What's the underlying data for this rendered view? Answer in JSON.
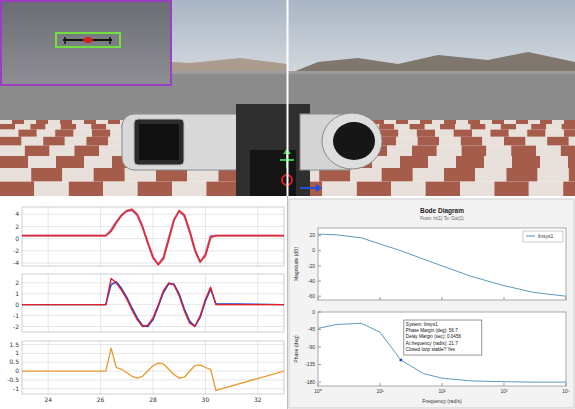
{
  "chart_data": [
    {
      "type": "line",
      "x": [
        23,
        26.2,
        26.4,
        26.6,
        26.8,
        27.0,
        27.2,
        27.4,
        27.6,
        27.8,
        28.0,
        28.2,
        28.4,
        28.6,
        28.8,
        29.0,
        29.2,
        29.4,
        29.6,
        29.8,
        30.0,
        30.2,
        30.4,
        33
      ],
      "xlim": [
        23,
        33
      ],
      "xticks": [
        24,
        26,
        28,
        30,
        32
      ],
      "ylim": [
        -4.5,
        5.2
      ],
      "yticks": [
        -4,
        -2,
        0,
        2,
        4
      ],
      "grid": true,
      "tick_labels": "y",
      "series": [
        {
          "color": "#b07fd8",
          "values": [
            0.5,
            0.5,
            1.5,
            2.8,
            3.9,
            4.5,
            4.6,
            3.8,
            1.8,
            -0.8,
            -3.2,
            -4.2,
            -3.0,
            0.2,
            3.2,
            4.5,
            3.6,
            1.0,
            -2.0,
            -3.9,
            -2.5,
            0.5,
            0.5,
            0.5
          ]
        },
        {
          "color": "#e03030",
          "values": [
            0.5,
            0.5,
            1.2,
            2.6,
            3.8,
            4.6,
            4.8,
            4.0,
            2.0,
            -0.6,
            -3.0,
            -4.3,
            -3.3,
            -0.2,
            3.0,
            4.6,
            3.9,
            1.3,
            -1.8,
            -3.8,
            -2.8,
            0.2,
            0.5,
            0.5
          ]
        }
      ]
    },
    {
      "type": "line",
      "x": [
        23,
        26.2,
        26.4,
        26.6,
        26.8,
        27.0,
        27.2,
        27.4,
        27.6,
        27.8,
        28.0,
        28.2,
        28.4,
        28.6,
        28.8,
        29.0,
        29.2,
        29.4,
        29.6,
        29.8,
        30.0,
        30.2,
        30.4,
        33
      ],
      "xlim": [
        23,
        33
      ],
      "xticks": [
        24,
        26,
        28,
        30,
        32
      ],
      "ylim": [
        -2.5,
        2.8
      ],
      "yticks": [
        -2,
        -1,
        0,
        1,
        2
      ],
      "grid": true,
      "tick_labels": "y",
      "series": [
        {
          "color": "#c8a0e0",
          "values": [
            0,
            0,
            2.0,
            1.9,
            1.4,
            0.6,
            -0.4,
            -1.3,
            -1.9,
            -1.9,
            -1.3,
            -0.1,
            1.2,
            1.9,
            1.8,
            0.9,
            -0.5,
            -1.6,
            -1.9,
            -1.1,
            0.4,
            1.5,
            0,
            0
          ]
        },
        {
          "color": "#2040d0",
          "values": [
            0,
            0,
            1.8,
            2.1,
            1.5,
            0.7,
            -0.3,
            -1.2,
            -1.9,
            -2.0,
            -1.4,
            -0.2,
            1.1,
            1.9,
            1.9,
            1.0,
            -0.4,
            -1.5,
            -2.0,
            -1.2,
            0.3,
            1.4,
            0.1,
            0
          ]
        },
        {
          "color": "#e02020",
          "values": [
            0,
            0,
            2.4,
            2.0,
            1.3,
            0.5,
            -0.5,
            -1.4,
            -2.0,
            -1.9,
            -1.2,
            0.0,
            1.3,
            2.0,
            1.8,
            0.8,
            -0.6,
            -1.7,
            -2.0,
            -1.0,
            0.5,
            1.6,
            0,
            0
          ]
        }
      ]
    },
    {
      "type": "line",
      "x": [
        23,
        26.2,
        26.4,
        26.6,
        26.8,
        27.0,
        27.2,
        27.4,
        27.6,
        27.8,
        28.0,
        28.2,
        28.4,
        28.6,
        28.8,
        29.0,
        29.2,
        29.4,
        29.6,
        29.8,
        30.0,
        30.2,
        30.4,
        33
      ],
      "xlim": [
        23,
        33
      ],
      "xticks": [
        24,
        26,
        28,
        30,
        32
      ],
      "ylim": [
        -1.3,
        1.7
      ],
      "yticks": [
        -1,
        -0.5,
        0,
        0.5,
        1,
        1.5
      ],
      "grid": true,
      "series": [
        {
          "color": "#e89a2c",
          "values": [
            0,
            0,
            1.3,
            0.2,
            0.1,
            -0.1,
            -0.3,
            -0.4,
            -0.3,
            0,
            0.3,
            0.45,
            0.4,
            0.1,
            -0.2,
            -0.4,
            -0.35,
            0,
            0.3,
            0.35,
            0.2,
            0.1,
            -1.1,
            0
          ]
        }
      ]
    },
    {
      "type": "line",
      "title": "Bode Diagram",
      "subtitle": "From: In(1) To: Out(1)",
      "y_label": "Magnitude (dB)",
      "log": "x",
      "x": [
        1,
        2,
        5,
        10,
        21.7,
        50,
        100,
        300,
        1000,
        3000,
        10000
      ],
      "xlim": [
        1,
        10000
      ],
      "xticks": [
        {
          "value": 1,
          "label": "10⁰"
        },
        {
          "value": 10,
          "label": "10¹"
        },
        {
          "value": 100,
          "label": "10²"
        },
        {
          "value": 1000,
          "label": "10³"
        },
        {
          "value": 10000,
          "label": "10⁴"
        }
      ],
      "ylim": [
        -65,
        30
      ],
      "yticks": [
        -60,
        -40,
        -20,
        0,
        20
      ],
      "grid": false,
      "tick_labels": "y",
      "legend": "upper right",
      "series": [
        {
          "name": "linsys1",
          "color": "#4a8fb5",
          "values": [
            22,
            21,
            17,
            9,
            0,
            -11,
            -20,
            -34,
            -46,
            -55,
            -60
          ]
        }
      ]
    },
    {
      "type": "line",
      "y_label": "Phase (deg)",
      "x_label": "Frequency (rad/s)",
      "log": "x",
      "x": [
        1,
        2,
        5,
        10,
        21.7,
        50,
        100,
        300,
        1000,
        3000,
        10000
      ],
      "xlim": [
        1,
        10000
      ],
      "xticks": [
        {
          "value": 1,
          "label": "10⁰"
        },
        {
          "value": 10,
          "label": "10¹"
        },
        {
          "value": 100,
          "label": "10²"
        },
        {
          "value": 1000,
          "label": "10³"
        },
        {
          "value": 10000,
          "label": "10⁴"
        }
      ],
      "ylim": [
        -190,
        0
      ],
      "yticks": [
        -180,
        -135,
        -90,
        -45,
        0
      ],
      "grid": false,
      "series": [
        {
          "color": "#4a8fb5",
          "values": [
            -42,
            -32,
            -29,
            -52,
            -123.3,
            -158,
            -170,
            -177,
            -179,
            -180,
            -180
          ]
        }
      ],
      "annotation": {
        "x": 21.7,
        "y": -123.3,
        "text": [
          "System: linsys1",
          "Phase Margin (deg): 56.7",
          "Delay Margin (sec): 0.0456",
          "At frequency (rad/s): 21.7",
          "Closed loop stable? Yes"
        ]
      }
    }
  ]
}
